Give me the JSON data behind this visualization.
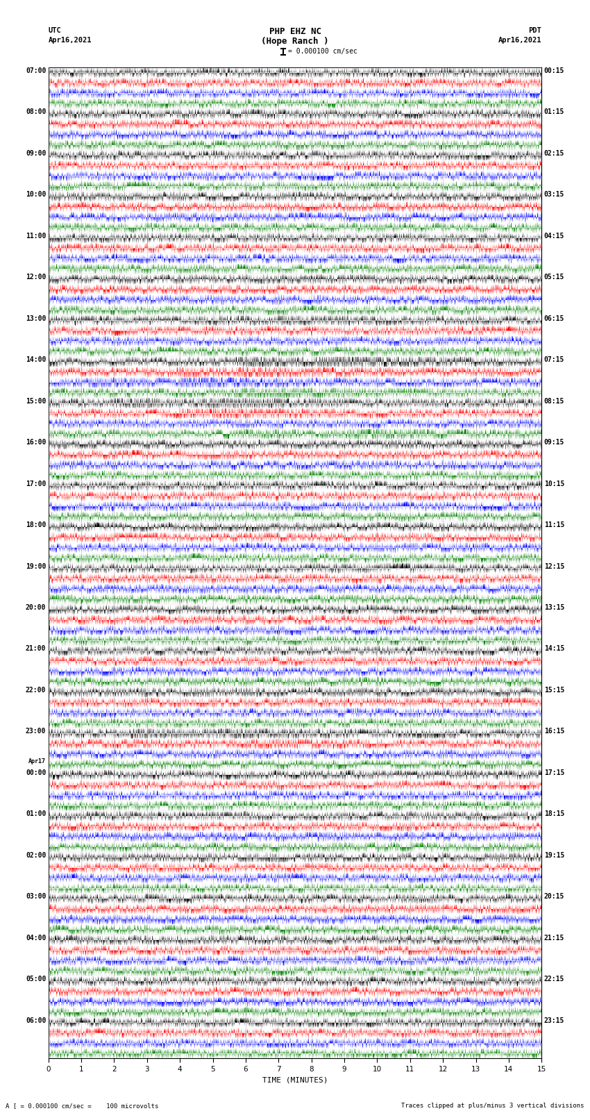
{
  "title_line1": "PHP EHZ NC",
  "title_line2": "(Hope Ranch )",
  "title_line3": "= 0.000100 cm/sec",
  "left_header_line1": "UTC",
  "left_header_line2": "Apr16,2021",
  "right_header_line1": "PDT",
  "right_header_line2": "Apr16,2021",
  "footer_left": "A [ = 0.000100 cm/sec =    100 microvolts",
  "footer_right": "Traces clipped at plus/minus 3 vertical divisions",
  "xlabel": "TIME (MINUTES)",
  "utc_labels": [
    "07:00",
    "08:00",
    "09:00",
    "10:00",
    "11:00",
    "12:00",
    "13:00",
    "14:00",
    "15:00",
    "16:00",
    "17:00",
    "18:00",
    "19:00",
    "20:00",
    "21:00",
    "22:00",
    "23:00",
    "00:00",
    "01:00",
    "02:00",
    "03:00",
    "04:00",
    "05:00",
    "06:00"
  ],
  "pdt_labels": [
    "00:15",
    "01:15",
    "02:15",
    "03:15",
    "04:15",
    "05:15",
    "06:15",
    "07:15",
    "08:15",
    "09:15",
    "10:15",
    "11:15",
    "12:15",
    "13:15",
    "14:15",
    "15:15",
    "16:15",
    "17:15",
    "18:15",
    "19:15",
    "20:15",
    "21:15",
    "22:15",
    "23:15"
  ],
  "n_rows": 24,
  "n_traces_per_row": 4,
  "trace_colors": [
    "black",
    "red",
    "blue",
    "green"
  ],
  "bg_color": "white",
  "time_minutes": 15,
  "sample_rate": 200,
  "xticks": [
    0,
    1,
    2,
    3,
    4,
    5,
    6,
    7,
    8,
    9,
    10,
    11,
    12,
    13,
    14,
    15
  ],
  "base_amplitude": 0.38,
  "event_rows": {
    "7_0": 2.8,
    "7_1": 1.8,
    "7_2": 2.8,
    "7_3": 2.0,
    "8_0": 2.0,
    "8_1": 2.0,
    "8_3": 1.5,
    "6_0": 1.0,
    "16_0": 2.0,
    "16_1": 1.0
  }
}
